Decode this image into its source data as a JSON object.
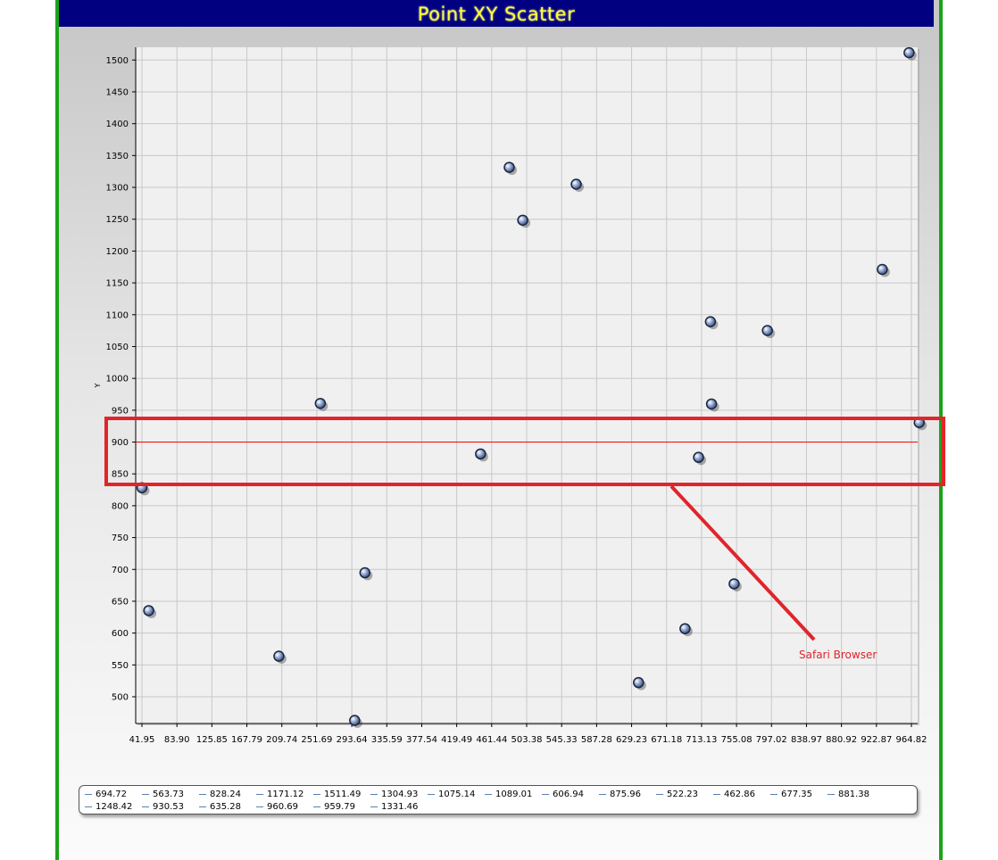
{
  "chart_data": {
    "type": "scatter",
    "title": "Point XY Scatter",
    "ylabel": "Y",
    "xlabel": "",
    "x_ticks": [
      "41.95",
      "83.90",
      "125.85",
      "167.79",
      "209.74",
      "251.69",
      "293.64",
      "335.59",
      "377.54",
      "419.49",
      "461.44",
      "503.38",
      "545.33",
      "587.28",
      "629.23",
      "671.18",
      "713.13",
      "755.08",
      "797.02",
      "838.97",
      "880.92",
      "922.87",
      "964.82"
    ],
    "xlim": [
      41.95,
      964.82
    ],
    "y_ticks": [
      500,
      550,
      600,
      650,
      700,
      750,
      800,
      850,
      900,
      950,
      1000,
      1050,
      1100,
      1150,
      1200,
      1250,
      1300,
      1350,
      1400,
      1450,
      1500
    ],
    "ylim": [
      458,
      1520
    ],
    "grid": true,
    "points": [
      {
        "x": 41.95,
        "y": 828.24
      },
      {
        "x": 50.1,
        "y": 635.28
      },
      {
        "x": 206.2,
        "y": 563.73
      },
      {
        "x": 255.9,
        "y": 960.69
      },
      {
        "x": 297.1,
        "y": 462.86
      },
      {
        "x": 309.4,
        "y": 694.72
      },
      {
        "x": 448.1,
        "y": 881.38
      },
      {
        "x": 482.5,
        "y": 1331.46
      },
      {
        "x": 498.7,
        "y": 1248.42
      },
      {
        "x": 562.8,
        "y": 1304.93
      },
      {
        "x": 637.5,
        "y": 522.23
      },
      {
        "x": 693.3,
        "y": 606.94
      },
      {
        "x": 709.5,
        "y": 875.96
      },
      {
        "x": 723.8,
        "y": 1089.01
      },
      {
        "x": 725.1,
        "y": 959.79
      },
      {
        "x": 752.2,
        "y": 677.35
      },
      {
        "x": 792.1,
        "y": 1075.14
      },
      {
        "x": 929.9,
        "y": 1171.12
      },
      {
        "x": 962.0,
        "y": 1511.49
      },
      {
        "x": 974.2,
        "y": 930.53
      }
    ],
    "reference_line": {
      "y": 900,
      "color": "#ff0000"
    },
    "legend": [
      "694.72",
      "563.73",
      "828.24",
      "1171.12",
      "1511.49",
      "1304.93",
      "1075.14",
      "1089.01",
      "606.94",
      "875.96",
      "522.23",
      "462.86",
      "677.35",
      "881.38",
      "1248.42",
      "930.53",
      "635.28",
      "960.69",
      "959.79",
      "1331.46"
    ],
    "legend_placement": "bottom",
    "annotation": {
      "text": "Safari Browser",
      "color": "#e0252b"
    }
  },
  "colors": {
    "title_bar": "#000080",
    "title_text": "#ffff33",
    "frame_border": "#1aa31a",
    "plot_background": "#f0f0f0",
    "grid": "#c8c8c8",
    "marker_fill": "#9bb0d6",
    "marker_edge": "#1b2640",
    "legend_swatch": "#5a7fb0",
    "annotation": "#e0252b"
  }
}
